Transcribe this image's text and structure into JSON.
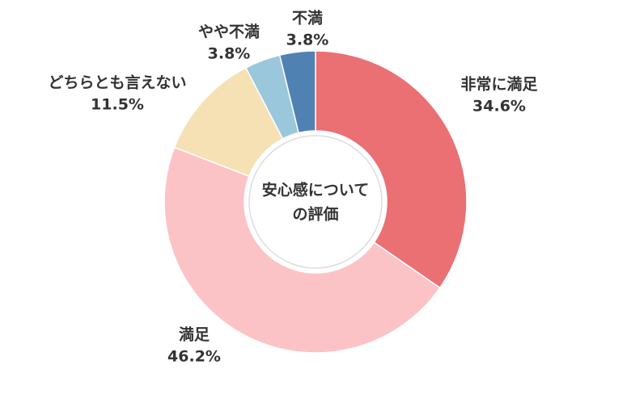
{
  "chart_data": {
    "type": "donut",
    "center_label": [
      "安心感について",
      "の評価"
    ],
    "categories": [
      "非常に満足",
      "満足",
      "どちらとも言えない",
      "やや不満",
      "不満"
    ],
    "values": [
      34.6,
      46.2,
      11.5,
      3.8,
      3.8
    ],
    "value_labels": [
      "34.6%",
      "46.2%",
      "11.5%",
      "3.8%",
      "3.8%"
    ],
    "colors": [
      "#ea7074",
      "#fcc3c6",
      "#f5e1b3",
      "#9bc7dd",
      "#4f82b3"
    ]
  }
}
